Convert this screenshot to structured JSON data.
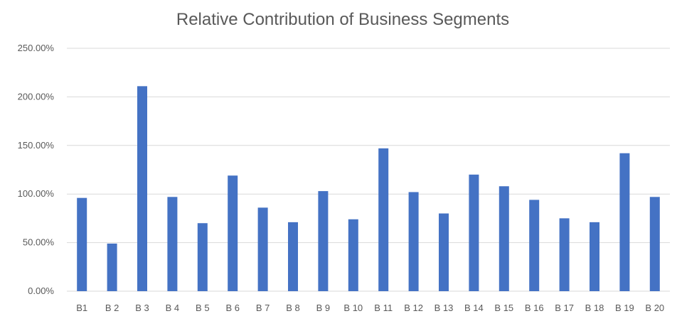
{
  "chart_data": {
    "type": "bar",
    "title": "Relative Contribution of Business Segments",
    "xlabel": "",
    "ylabel": "",
    "categories": [
      "B1",
      "B 2",
      "B 3",
      "B 4",
      "B 5",
      "B 6",
      "B 7",
      "B 8",
      "B 9",
      "B 10",
      "B 11",
      "B 12",
      "B 13",
      "B 14",
      "B 15",
      "B 16",
      "B 17",
      "B 18",
      "B 19",
      "B 20"
    ],
    "series": [
      {
        "name": "Relative Contribution",
        "values": [
          96,
          49,
          211,
          97,
          70,
          119,
          86,
          71,
          103,
          74,
          147,
          102,
          80,
          120,
          108,
          94,
          75,
          71,
          142,
          97
        ]
      }
    ],
    "ylim": [
      0,
      250
    ],
    "yticks": [
      0,
      50,
      100,
      150,
      200,
      250
    ],
    "ytick_labels": [
      "0.00%",
      "50.00%",
      "100.00%",
      "150.00%",
      "200.00%",
      "250.00%"
    ],
    "grid": true,
    "legend": "none",
    "colors": {
      "bar": "#4472C4",
      "grid": "#d9d9d9",
      "text": "#595959"
    }
  }
}
